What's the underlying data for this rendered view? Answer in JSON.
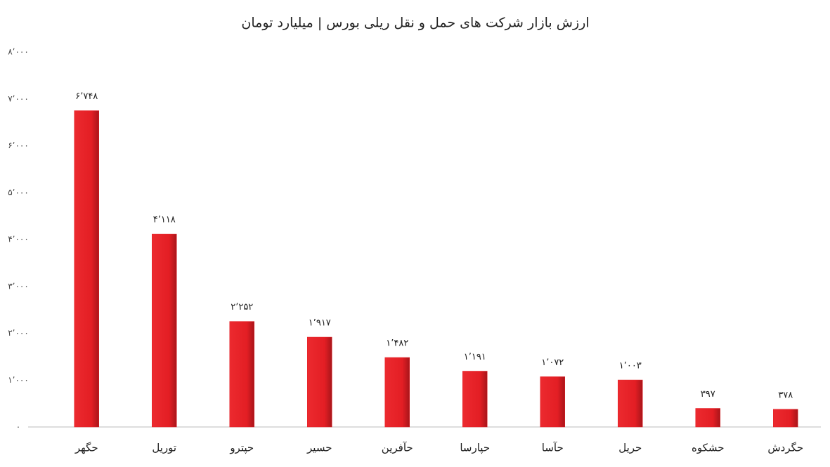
{
  "chart_data": {
    "type": "bar",
    "title": "ارزش بازار شرکت های حمل و نقل ریلی بورس | میلیارد تومان",
    "categories": [
      "حگهر",
      "توریل",
      "حپترو",
      "حسیر",
      "حآفرین",
      "حپارسا",
      "حآسا",
      "حریل",
      "حشکوه",
      "حگردش"
    ],
    "values": [
      6748,
      4118,
      2252,
      1917,
      1482,
      1191,
      1072,
      1003,
      397,
      378
    ],
    "value_labels": [
      "۶٬۷۴۸",
      "۴٬۱۱۸",
      "۲٬۲۵۲",
      "۱٬۹۱۷",
      "۱٬۴۸۲",
      "۱٬۱۹۱",
      "۱٬۰۷۲",
      "۱٬۰۰۳",
      "۳۹۷",
      "۳۷۸"
    ],
    "color": "#e31e24",
    "ylim": [
      0,
      8000
    ],
    "yticks": [
      {
        "value": 0,
        "label": "۰"
      },
      {
        "value": 1000,
        "label": "۱٬۰۰۰"
      },
      {
        "value": 2000,
        "label": "۲٬۰۰۰"
      },
      {
        "value": 3000,
        "label": "۳٬۰۰۰"
      },
      {
        "value": 4000,
        "label": "۴٬۰۰۰"
      },
      {
        "value": 5000,
        "label": "۵٬۰۰۰"
      },
      {
        "value": 6000,
        "label": "۶٬۰۰۰"
      },
      {
        "value": 7000,
        "label": "۷٬۰۰۰"
      },
      {
        "value": 8000,
        "label": "۸٬۰۰۰"
      }
    ],
    "grid": false
  }
}
